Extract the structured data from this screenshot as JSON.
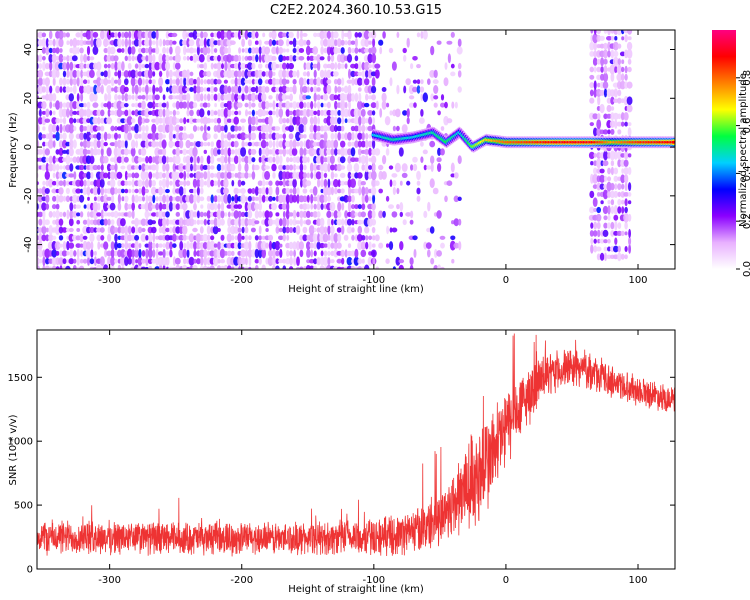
{
  "title": "C2E2.2024.360.10.53.G15",
  "chart_data": [
    {
      "type": "heatmap",
      "name": "spectrogram",
      "xlabel": "Height of straight line (km)",
      "ylabel": "Frequency (Hz)",
      "xlim": [
        -355,
        128
      ],
      "ylim": [
        -50,
        48
      ],
      "xticks": [
        -300,
        -200,
        -100,
        0,
        100
      ],
      "yticks": [
        -40,
        -20,
        0,
        20,
        40
      ],
      "xticklabels": [
        "-300",
        "-200",
        "-100",
        "0",
        "100"
      ],
      "yticklabels": [
        "-40",
        "-20",
        "0",
        "20",
        "40"
      ],
      "colorbar": {
        "label": "Normalized spectral amplitude",
        "range": [
          0,
          1
        ],
        "ticks": [
          0.0,
          0.2,
          0.4,
          0.6,
          0.8
        ],
        "ticklabels": [
          "0.0",
          "0.2",
          "0.4",
          "0.6",
          "0.8"
        ],
        "colors": [
          "#ffffff",
          "#e8b0ff",
          "#8a00ff",
          "#0000ff",
          "#00d0ff",
          "#00ff40",
          "#ffff00",
          "#ff8000",
          "#ff0000",
          "#ff0080"
        ]
      },
      "regions": [
        {
          "x": [
            -355,
            -100
          ],
          "y": [
            -50,
            48
          ],
          "description_level": "dense noise",
          "amplitude": 0.1
        },
        {
          "x": [
            -100,
            -35
          ],
          "y": [
            -50,
            48
          ],
          "description_level": "sparse noise",
          "amplitude": 0.05
        },
        {
          "x": [
            65,
            95
          ],
          "y": [
            -45,
            48
          ],
          "description_level": "noise band",
          "amplitude": 0.1
        }
      ],
      "signal_track": [
        {
          "x": -100,
          "y": 5,
          "amplitude": 0.45
        },
        {
          "x": -85,
          "y": 3,
          "amplitude": 0.5
        },
        {
          "x": -70,
          "y": 4,
          "amplitude": 0.45
        },
        {
          "x": -55,
          "y": 6,
          "amplitude": 0.5
        },
        {
          "x": -45,
          "y": 2,
          "amplitude": 0.55
        },
        {
          "x": -35,
          "y": 6,
          "amplitude": 0.45
        },
        {
          "x": -25,
          "y": 0,
          "amplitude": 0.6
        },
        {
          "x": -15,
          "y": 3,
          "amplitude": 0.7
        },
        {
          "x": 0,
          "y": 2,
          "amplitude": 0.8
        },
        {
          "x": 20,
          "y": 2,
          "amplitude": 0.85
        },
        {
          "x": 40,
          "y": 2,
          "amplitude": 0.9
        },
        {
          "x": 65,
          "y": 2,
          "amplitude": 0.9
        },
        {
          "x": 80,
          "y": 2,
          "amplitude": 0.75
        },
        {
          "x": 100,
          "y": 2,
          "amplitude": 0.85
        },
        {
          "x": 128,
          "y": 2,
          "amplitude": 0.9
        }
      ]
    },
    {
      "type": "line",
      "name": "snr",
      "xlabel": "Height of straight line (km)",
      "ylabel": "SNR (10 * v/v)",
      "xlim": [
        -355,
        128
      ],
      "ylim": [
        0,
        1870
      ],
      "xticks": [
        -300,
        -200,
        -100,
        0,
        100
      ],
      "yticks": [
        0,
        500,
        1000,
        1500
      ],
      "xticklabels": [
        "-300",
        "-200",
        "-100",
        "0",
        "100"
      ],
      "yticklabels": [
        "0",
        "500",
        "1000",
        "1500"
      ],
      "color": "#ee3333",
      "envelope": {
        "x": [
          -355,
          -300,
          -250,
          -200,
          -150,
          -100,
          -80,
          -60,
          -40,
          -30,
          -20,
          -10,
          0,
          10,
          20,
          30,
          40,
          50,
          60,
          80,
          100,
          128
        ],
        "y_mean": [
          250,
          245,
          240,
          240,
          240,
          250,
          270,
          330,
          500,
          650,
          750,
          900,
          1100,
          1250,
          1400,
          1500,
          1550,
          1580,
          1560,
          1470,
          1400,
          1320
        ],
        "y_spread": [
          130,
          125,
          120,
          120,
          120,
          140,
          150,
          180,
          250,
          350,
          400,
          350,
          300,
          250,
          200,
          160,
          150,
          140,
          130,
          120,
          110,
          100
        ]
      }
    }
  ]
}
